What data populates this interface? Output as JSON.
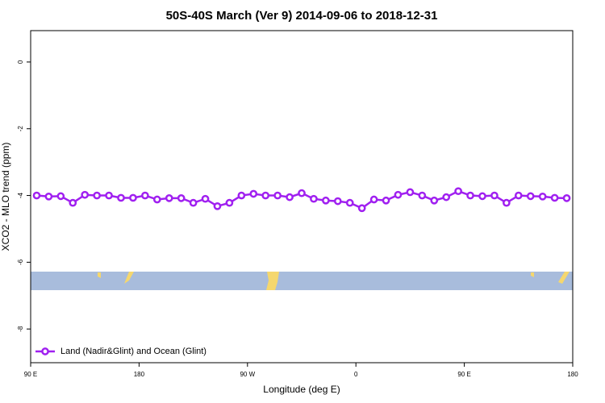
{
  "chart_data": {
    "type": "line",
    "title": "50S-40S March (Ver 9)   2014-09-06 to 2018-12-31",
    "x_label": "Longitude (deg E)",
    "y_label": "XCO2 - MLO trend (ppm)",
    "x": [
      95,
      105,
      115,
      125,
      135,
      145,
      155,
      165,
      175,
      185,
      195,
      205,
      215,
      225,
      235,
      245,
      255,
      265,
      275,
      285,
      295,
      305,
      315,
      325,
      335,
      345,
      355,
      365,
      375,
      385,
      395,
      405,
      415,
      425,
      435,
      445,
      455,
      465,
      475,
      485,
      495,
      505,
      515,
      525,
      535
    ],
    "series": [
      {
        "name": "Land (Nadir&Glint) and Ocean (Glint)",
        "color": "#a020f0",
        "values": [
          -4.0,
          -4.03,
          -4.02,
          -4.22,
          -3.98,
          -4.0,
          -4.0,
          -4.07,
          -4.07,
          -4.0,
          -4.12,
          -4.08,
          -4.08,
          -4.22,
          -4.1,
          -4.32,
          -4.22,
          -4.0,
          -3.95,
          -4.0,
          -4.0,
          -4.05,
          -3.93,
          -4.1,
          -4.15,
          -4.17,
          -4.22,
          -4.38,
          -4.12,
          -4.15,
          -3.98,
          -3.9,
          -4.0,
          -4.15,
          -4.05,
          -3.87,
          -4.0,
          -4.02,
          -4.0,
          -4.22,
          -4.0,
          -4.02,
          -4.03,
          -4.07,
          -4.08
        ]
      }
    ],
    "xlim": [
      90,
      540
    ],
    "xticks": [
      {
        "value": 90,
        "label": "90 E"
      },
      180,
      {
        "value": 270,
        "label": "90 W"
      },
      {
        "value": 360,
        "label": "0"
      },
      {
        "value": 450,
        "label": "90 E"
      },
      {
        "value": 540,
        "label": "180"
      }
    ],
    "ylim": [
      -9.01,
      0.94
    ],
    "yticks": [
      0,
      -2,
      -4,
      -6,
      -8
    ],
    "legend": "bottom-left"
  }
}
